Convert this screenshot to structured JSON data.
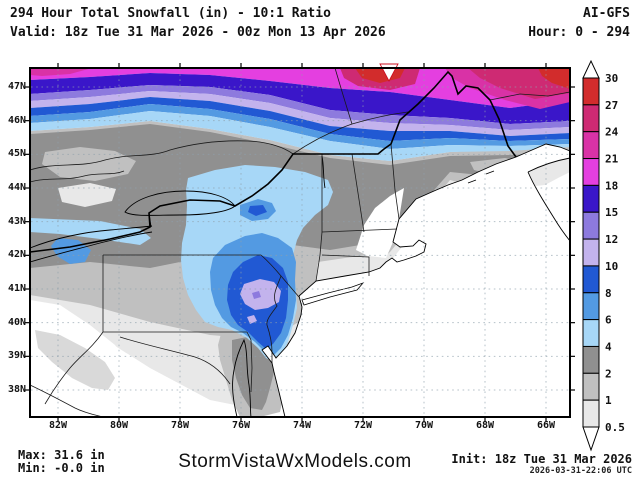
{
  "header": {
    "title": "294 Hour Total Snowfall (in) - 10:1 Ratio",
    "model": "AI-GFS",
    "valid": "Valid: 18z Tue 31 Mar 2026 - 00z Mon 13 Apr 2026",
    "hour": "Hour: 0 - 294"
  },
  "footer": {
    "max": "Max: 31.6 in",
    "min": "Min: -0.0 in",
    "site": "StormVistaWxModels.com",
    "init": "Init: 18z Tue 31 Mar 2026",
    "init_time": "2026-03-31-22:06 UTC"
  },
  "axes": {
    "lat_labels": [
      "47N",
      "46N",
      "45N",
      "44N",
      "43N",
      "42N",
      "41N",
      "40N",
      "39N",
      "38N"
    ],
    "lon_labels": [
      "82W",
      "80W",
      "78W",
      "76W",
      "74W",
      "72W",
      "70W",
      "68W",
      "66W"
    ]
  },
  "colorbar": {
    "unit": "in",
    "labels": [
      "30",
      "27",
      "24",
      "21",
      "18",
      "15",
      "12",
      "10",
      "8",
      "6",
      "4",
      "2",
      "1",
      "0.5"
    ],
    "colors": [
      "#d22c2c",
      "#ce2a73",
      "#d932a6",
      "#e43fe0",
      "#3a16c9",
      "#8d7ade",
      "#c3b3ed",
      "#2159d3",
      "#539ae2",
      "#a7d7f7",
      "#909090",
      "#c0c0c0",
      "#e8e8e8"
    ]
  }
}
